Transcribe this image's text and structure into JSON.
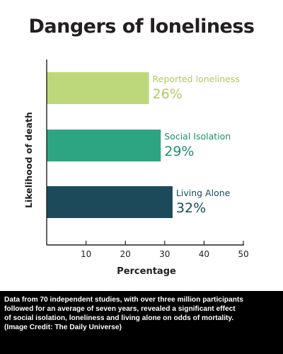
{
  "chart_data": {
    "type": "bar",
    "orientation": "horizontal",
    "title": "Dangers of loneliness",
    "xlabel": "Percentage",
    "ylabel": "Likelihood of death",
    "xlim": [
      0,
      50
    ],
    "xticks": [
      10,
      20,
      30,
      40,
      50
    ],
    "grid": false,
    "categories": [
      "Reported loneliness",
      "Social Isolation",
      "Living Alone"
    ],
    "values": [
      26,
      29,
      32
    ],
    "value_labels": [
      "26%",
      "29%",
      "32%"
    ],
    "colors": [
      "#bcd87a",
      "#2ea582",
      "#1c4a5a"
    ],
    "label_colors": [
      "#a9cc62",
      "#1b8f6e",
      "#1c4a5a"
    ]
  },
  "caption": {
    "lines": [
      "Data from 70 independent studies, with over three million participants",
      "followed for an average of seven years, revealed a significant effect",
      "of social isolation, loneliness and living alone on odds of mortality.",
      "(Image Credit: The Daily Universe)"
    ]
  }
}
